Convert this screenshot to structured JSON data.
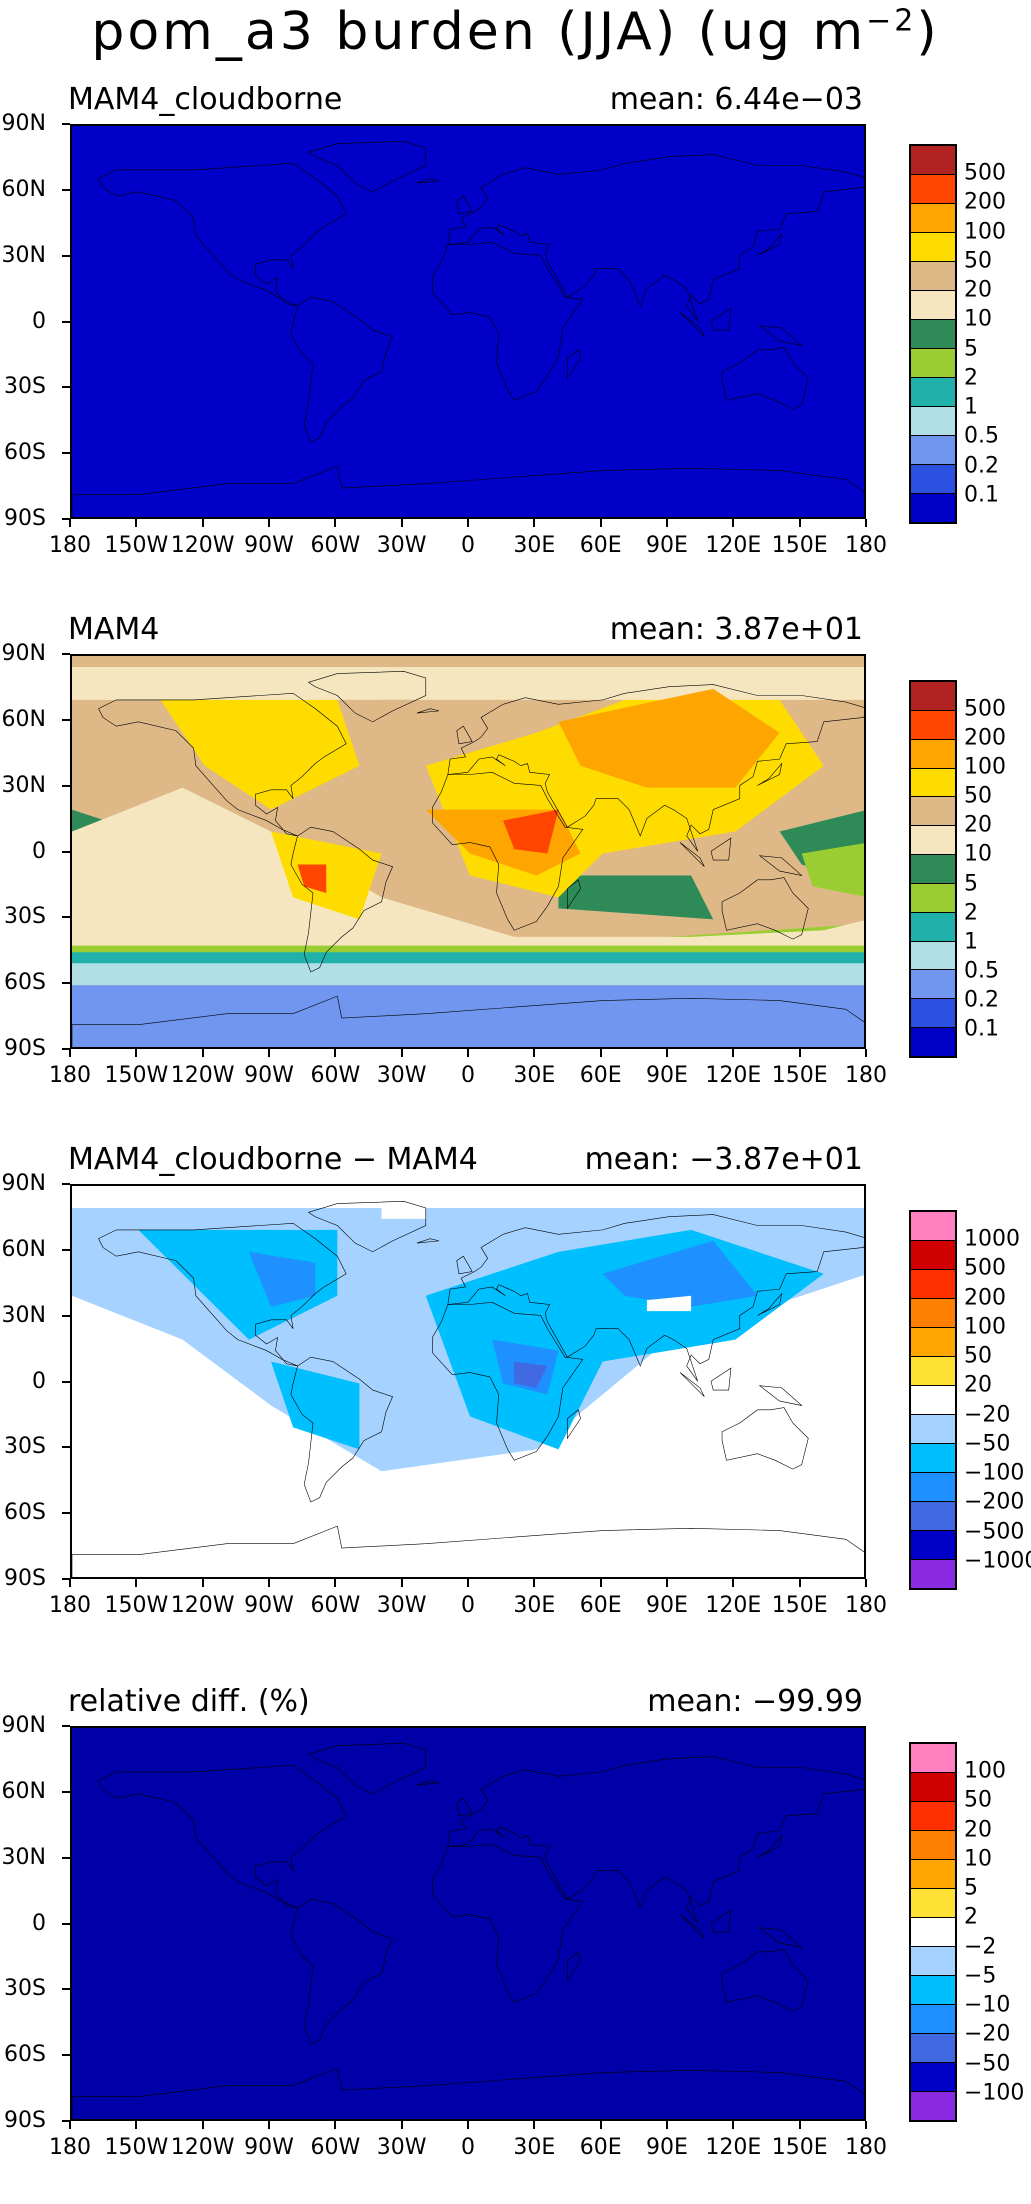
{
  "title": "pom_a3 burden (JJA) (ug m",
  "title_sup": "−2",
  "title_close": ")",
  "lat_labels": [
    "90N",
    "60N",
    "30N",
    "0",
    "30S",
    "60S",
    "90S"
  ],
  "lon_labels": [
    "180",
    "150W",
    "120W",
    "90W",
    "60W",
    "30W",
    "0",
    "30E",
    "60E",
    "90E",
    "120E",
    "150E",
    "180"
  ],
  "panels": [
    {
      "label": "MAM4_cloudborne",
      "mean": "mean: 6.44e−03",
      "field": "uniform_low",
      "colorbar": {
        "colors": [
          "#0000c8",
          "#2c50e0",
          "#7096f0",
          "#b0e0e6",
          "#20b2aa",
          "#9acd32",
          "#2e8b57",
          "#f5e6c0",
          "#deb887",
          "#ffdc00",
          "#ffa500",
          "#ff4500",
          "#b22222"
        ],
        "labels": [
          "0.1",
          "0.2",
          "0.5",
          "1",
          "2",
          "5",
          "10",
          "20",
          "50",
          "100",
          "200",
          "500"
        ]
      }
    },
    {
      "label": "MAM4",
      "mean": "mean: 3.87e+01",
      "field": "burden",
      "colorbar": {
        "colors": [
          "#0000c8",
          "#2c50e0",
          "#7096f0",
          "#b0e0e6",
          "#20b2aa",
          "#9acd32",
          "#2e8b57",
          "#f5e6c0",
          "#deb887",
          "#ffdc00",
          "#ffa500",
          "#ff4500",
          "#b22222"
        ],
        "labels": [
          "0.1",
          "0.2",
          "0.5",
          "1",
          "2",
          "5",
          "10",
          "20",
          "50",
          "100",
          "200",
          "500"
        ]
      }
    },
    {
      "label": "MAM4_cloudborne − MAM4",
      "mean": "mean: −3.87e+01",
      "field": "difference",
      "colorbar": {
        "colors": [
          "#8a2be2",
          "#0000c8",
          "#4169e1",
          "#1e90ff",
          "#00bfff",
          "#a6d2ff",
          "#ffffff",
          "#ffe135",
          "#ffa500",
          "#ff7f00",
          "#ff3000",
          "#d00000",
          "#ff7fbf"
        ],
        "labels": [
          "−1000",
          "−500",
          "−200",
          "−100",
          "−50",
          "−20",
          "20",
          "50",
          "100",
          "200",
          "500",
          "1000"
        ]
      }
    },
    {
      "label": "relative diff. (%)",
      "mean": "mean: −99.99",
      "field": "uniform_low",
      "colorbar": {
        "colors": [
          "#8a2be2",
          "#0000c8",
          "#4169e1",
          "#1e90ff",
          "#00bfff",
          "#a6d2ff",
          "#ffffff",
          "#ffe135",
          "#ffa500",
          "#ff7f00",
          "#ff3000",
          "#d00000",
          "#ff7fbf"
        ],
        "labels": [
          "−100",
          "−50",
          "−20",
          "−10",
          "−5",
          "−2",
          "2",
          "5",
          "10",
          "20",
          "50",
          "100"
        ]
      }
    }
  ]
}
